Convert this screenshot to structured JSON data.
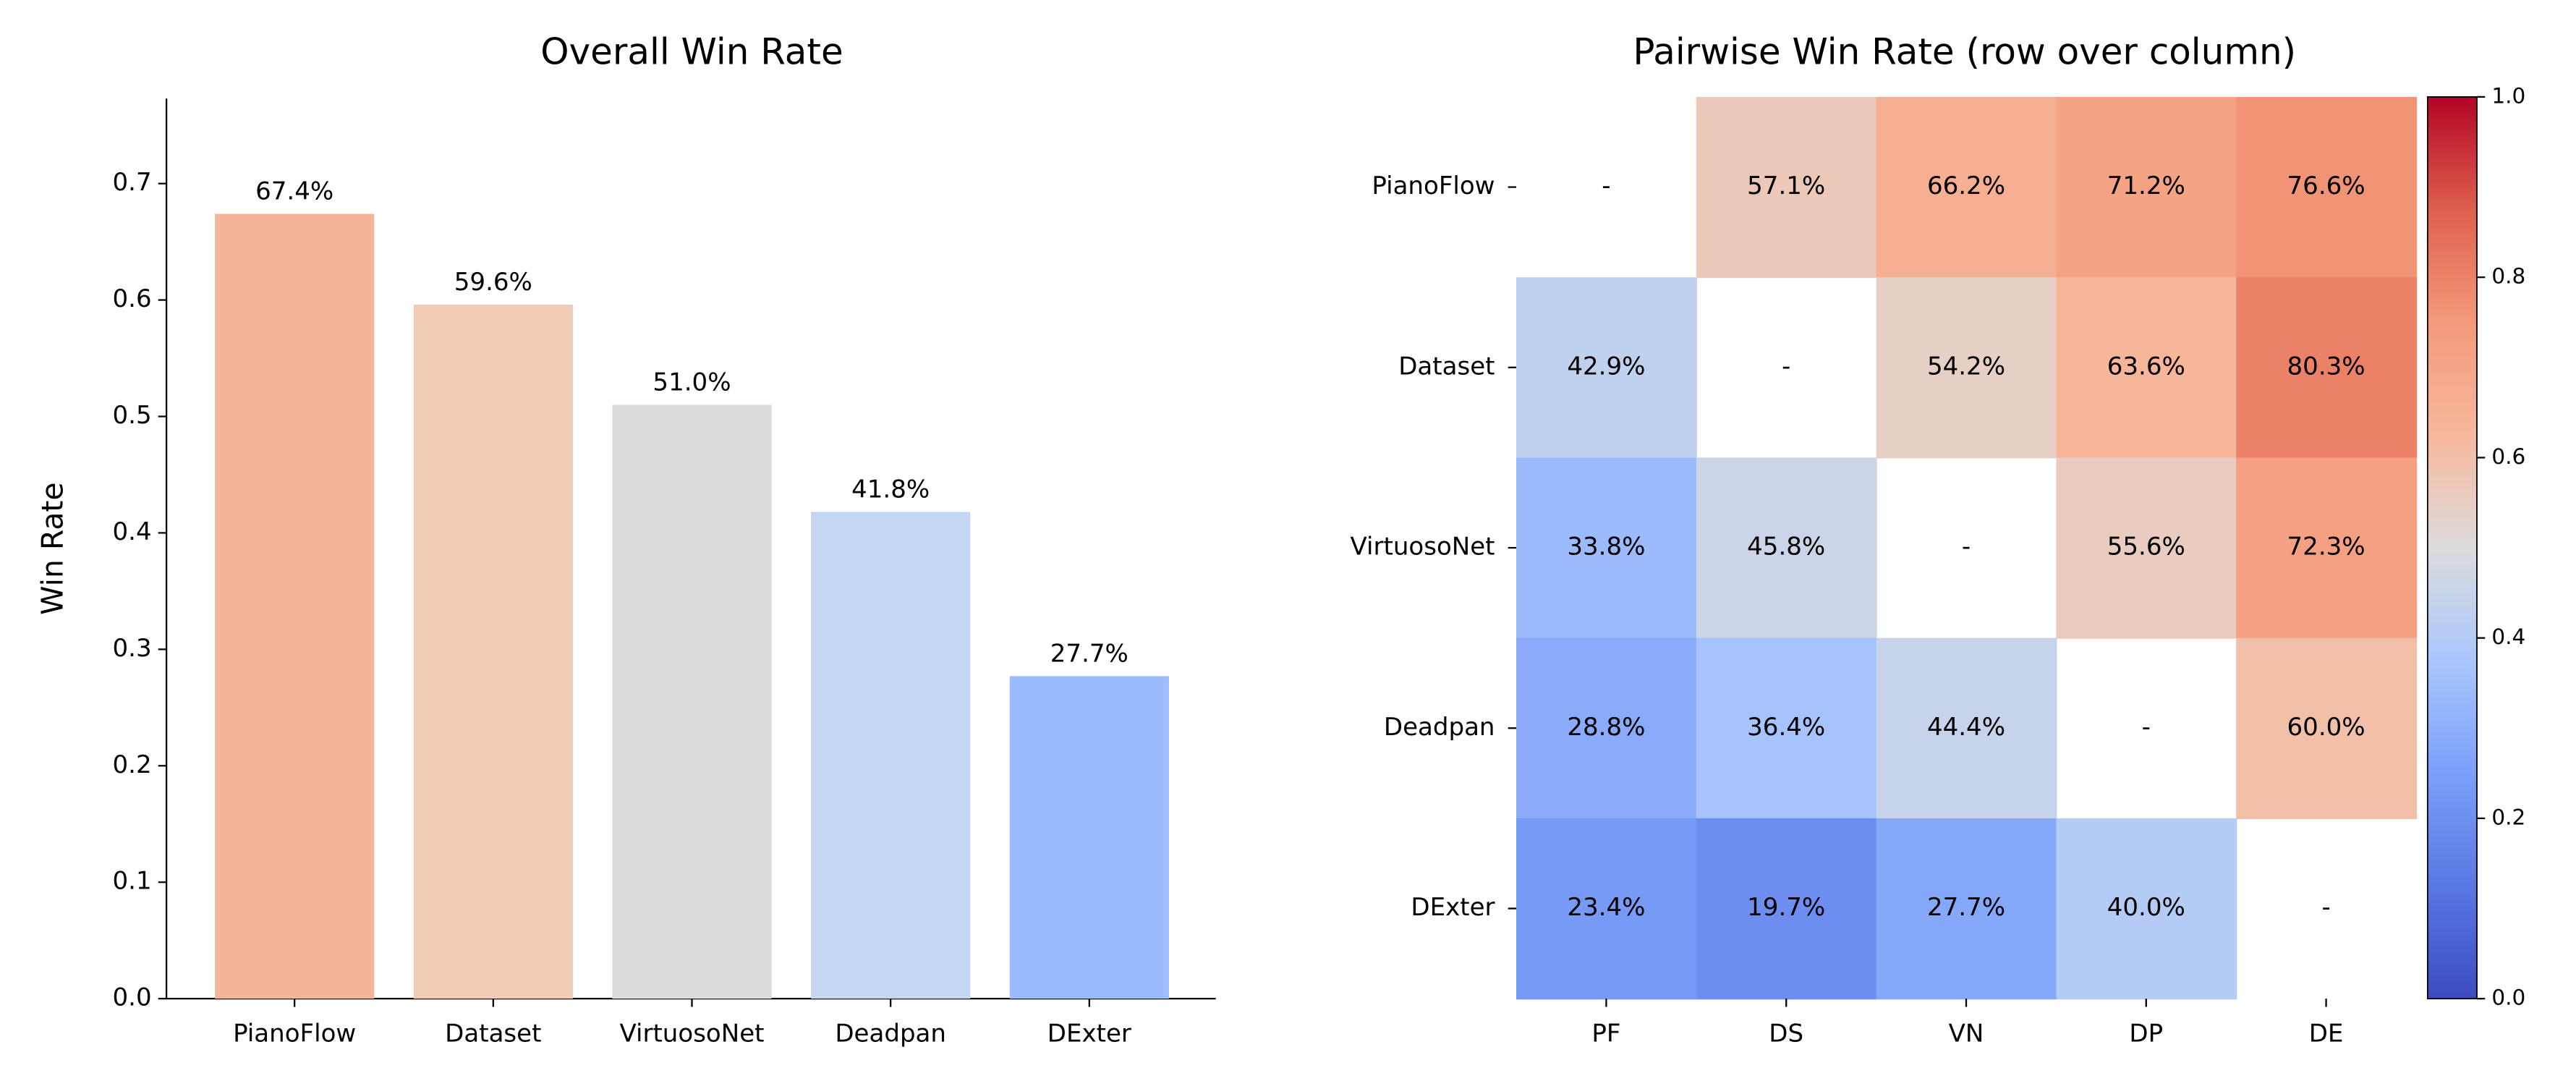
{
  "chart_data": [
    {
      "type": "bar",
      "title": "Overall Win Rate",
      "y_label": "Win Rate",
      "categories": [
        "PianoFlow",
        "Dataset",
        "VirtuosoNet",
        "Deadpan",
        "DExter"
      ],
      "values": [
        0.674,
        0.596,
        0.51,
        0.418,
        0.277
      ],
      "value_labels": [
        "67.4%",
        "59.6%",
        "51.0%",
        "41.8%",
        "27.7%"
      ],
      "colors": [
        "#f5b59b",
        "#f2cbb7",
        "#dddcdc",
        "#c5d6f2",
        "#9bbcff"
      ],
      "ylim": [
        0,
        0.773
      ],
      "yticks": [
        {
          "value": 0,
          "label": "0.0"
        },
        0.1,
        0.2,
        0.3,
        0.4,
        0.5,
        0.6,
        0.7
      ]
    },
    {
      "type": "heatmap",
      "title": "Pairwise Win Rate (row over column)",
      "x_categories": [
        "PF",
        "DS",
        "VN",
        "DP",
        "DE"
      ],
      "y_categories": [
        "PianoFlow",
        "Dataset",
        "VirtuosoNet",
        "Deadpan",
        "DExter"
      ],
      "values": [
        [
          null,
          0.571,
          0.662,
          0.712,
          0.766
        ],
        [
          0.429,
          null,
          0.542,
          0.636,
          0.803
        ],
        [
          0.338,
          0.458,
          null,
          0.556,
          0.723
        ],
        [
          0.288,
          0.364,
          0.444,
          null,
          0.6
        ],
        [
          0.234,
          0.197,
          0.277,
          0.4,
          null
        ]
      ],
      "value_labels": [
        [
          "-",
          "57.1%",
          "66.2%",
          "71.2%",
          "76.6%"
        ],
        [
          "42.9%",
          "-",
          "54.2%",
          "63.6%",
          "80.3%"
        ],
        [
          "33.8%",
          "45.8%",
          "-",
          "55.6%",
          "72.3%"
        ],
        [
          "28.8%",
          "36.4%",
          "44.4%",
          "-",
          "60.0%"
        ],
        [
          "23.4%",
          "19.7%",
          "27.7%",
          "40.0%",
          "-"
        ]
      ],
      "colormap": [
        "#3b4cc0",
        "#5977e3",
        "#7b9ff9",
        "#aac7fd",
        "#dddcdc",
        "#f7b89c",
        "#f49a7b",
        "#de604d",
        "#b40426"
      ],
      "clim": [
        {
          "value": 0,
          "label": "0.0"
        },
        {
          "value": 1,
          "label": "1.0"
        }
      ],
      "cticks": [
        {
          "value": 0,
          "label": "0.0"
        },
        0.2,
        0.4,
        0.6,
        0.8,
        {
          "value": 1,
          "label": "1.0"
        }
      ]
    }
  ]
}
